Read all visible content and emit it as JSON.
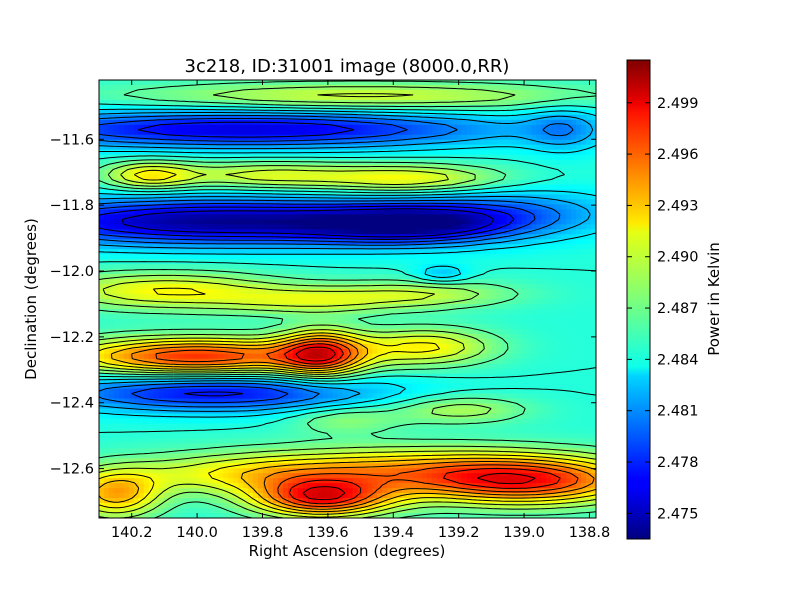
{
  "chart_data": {
    "type": "heatmap",
    "title": "3c218, ID:31001 image (8000.0,RR)",
    "xlabel": "Right Ascension (degrees)",
    "ylabel": "Declination (degrees)",
    "xlim": [
      140.3,
      138.78
    ],
    "ylim": [
      -12.75,
      -11.42
    ],
    "x_ticks": [
      {
        "value": 140.2,
        "label": "140.2"
      },
      {
        "value": 140.0,
        "label": "140.0"
      },
      {
        "value": 139.8,
        "label": "139.8"
      },
      {
        "value": 139.6,
        "label": "139.6"
      },
      {
        "value": 139.4,
        "label": "139.4"
      },
      {
        "value": 139.2,
        "label": "139.2"
      },
      {
        "value": 139.0,
        "label": "139.0"
      },
      {
        "value": 138.8,
        "label": "138.8"
      }
    ],
    "y_ticks": [
      {
        "value": -11.6,
        "label": "−11.6"
      },
      {
        "value": -11.8,
        "label": "−11.8"
      },
      {
        "value": -12.0,
        "label": "−12.0"
      },
      {
        "value": -12.2,
        "label": "−12.2"
      },
      {
        "value": -12.4,
        "label": "−12.4"
      },
      {
        "value": -12.6,
        "label": "−12.6"
      }
    ],
    "colorbar": {
      "label": "Power in Kelvin",
      "colormap": "jet",
      "range": [
        2.4735,
        2.5015
      ],
      "ticks": [
        {
          "value": 2.475,
          "label": "2.475"
        },
        {
          "value": 2.478,
          "label": "2.478"
        },
        {
          "value": 2.481,
          "label": "2.481"
        },
        {
          "value": 2.484,
          "label": "2.484"
        },
        {
          "value": 2.487,
          "label": "2.487"
        },
        {
          "value": 2.49,
          "label": "2.490"
        },
        {
          "value": 2.493,
          "label": "2.493"
        },
        {
          "value": 2.496,
          "label": "2.496"
        },
        {
          "value": 2.499,
          "label": "2.499"
        }
      ]
    },
    "background_level": 2.485,
    "features": [
      {
        "ra": 139.85,
        "dec": -11.57,
        "ra_width": 0.55,
        "dec_width": 0.04,
        "amplitude": -0.009
      },
      {
        "ra": 139.95,
        "dec": -11.85,
        "ra_width": 0.45,
        "dec_width": 0.05,
        "amplitude": -0.011
      },
      {
        "ra": 139.35,
        "dec": -11.86,
        "ra_width": 0.22,
        "dec_width": 0.04,
        "amplitude": -0.008
      },
      {
        "ra": 139.05,
        "dec": -11.82,
        "ra_width": 0.25,
        "dec_width": 0.05,
        "amplitude": -0.004
      },
      {
        "ra": 138.88,
        "dec": -11.57,
        "ra_width": 0.08,
        "dec_width": 0.05,
        "amplitude": -0.003
      },
      {
        "ra": 139.95,
        "dec": -12.37,
        "ra_width": 0.35,
        "dec_width": 0.04,
        "amplitude": -0.008
      },
      {
        "ra": 139.25,
        "dec": -12.01,
        "ra_width": 0.06,
        "dec_width": 0.02,
        "amplitude": -0.003
      },
      {
        "ra": 140.0,
        "dec": -12.26,
        "ra_width": 0.28,
        "dec_width": 0.04,
        "amplitude": 0.012
      },
      {
        "ra": 139.62,
        "dec": -12.25,
        "ra_width": 0.09,
        "dec_width": 0.05,
        "amplitude": 0.01
      },
      {
        "ra": 139.3,
        "dec": -12.23,
        "ra_width": 0.15,
        "dec_width": 0.04,
        "amplitude": 0.006
      },
      {
        "ra": 139.62,
        "dec": -12.69,
        "ra_width": 0.15,
        "dec_width": 0.04,
        "amplitude": 0.012
      },
      {
        "ra": 139.0,
        "dec": -12.64,
        "ra_width": 0.25,
        "dec_width": 0.05,
        "amplitude": 0.011
      },
      {
        "ra": 140.25,
        "dec": -12.68,
        "ra_width": 0.1,
        "dec_width": 0.05,
        "amplitude": 0.008
      },
      {
        "ra": 139.4,
        "dec": -12.6,
        "ra_width": 0.4,
        "dec_width": 0.05,
        "amplitude": 0.006
      },
      {
        "ra": 139.85,
        "dec": -12.62,
        "ra_width": 0.3,
        "dec_width": 0.04,
        "amplitude": 0.004
      },
      {
        "ra": 139.5,
        "dec": -11.47,
        "ra_width": 0.5,
        "dec_width": 0.03,
        "amplitude": 0.005
      },
      {
        "ra": 140.15,
        "dec": -11.71,
        "ra_width": 0.1,
        "dec_width": 0.03,
        "amplitude": 0.006
      },
      {
        "ra": 139.8,
        "dec": -11.71,
        "ra_width": 0.2,
        "dec_width": 0.03,
        "amplitude": 0.005
      },
      {
        "ra": 139.35,
        "dec": -11.72,
        "ra_width": 0.2,
        "dec_width": 0.03,
        "amplitude": 0.006
      },
      {
        "ra": 140.1,
        "dec": -12.06,
        "ra_width": 0.25,
        "dec_width": 0.04,
        "amplitude": 0.006
      },
      {
        "ra": 139.65,
        "dec": -12.09,
        "ra_width": 0.2,
        "dec_width": 0.03,
        "amplitude": 0.004
      },
      {
        "ra": 139.3,
        "dec": -12.07,
        "ra_width": 0.2,
        "dec_width": 0.03,
        "amplitude": 0.004
      },
      {
        "ra": 139.55,
        "dec": -12.45,
        "ra_width": 0.12,
        "dec_width": 0.03,
        "amplitude": 0.003
      },
      {
        "ra": 139.2,
        "dec": -12.42,
        "ra_width": 0.15,
        "dec_width": 0.03,
        "amplitude": 0.004
      }
    ]
  }
}
